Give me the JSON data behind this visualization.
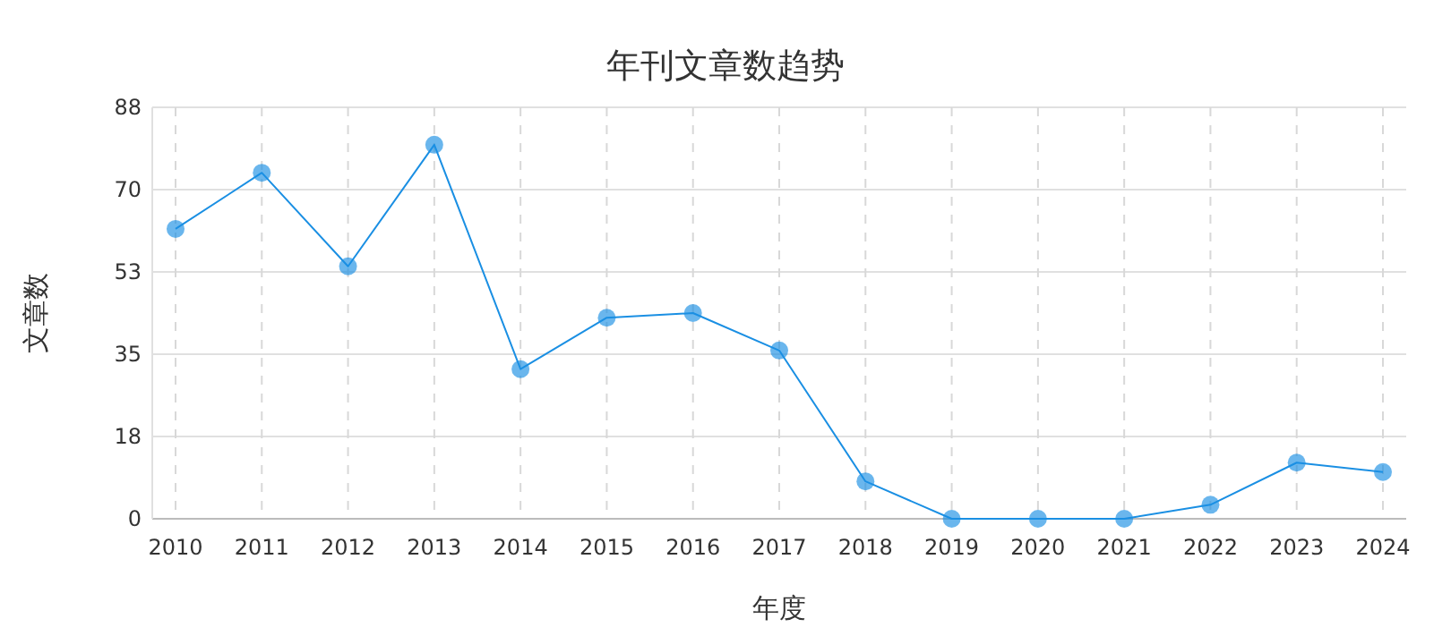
{
  "chart_data": {
    "type": "line",
    "title": "年刊文章数趋势",
    "xlabel": "年度",
    "ylabel": "文章数",
    "categories": [
      "2010",
      "2011",
      "2012",
      "2013",
      "2014",
      "2015",
      "2016",
      "2017",
      "2018",
      "2019",
      "2020",
      "2021",
      "2022",
      "2023",
      "2024"
    ],
    "series": [
      {
        "color": "#1a8fe3",
        "values": [
          62,
          74,
          54,
          80,
          32,
          43,
          44,
          36,
          8,
          0,
          0,
          0,
          3,
          12,
          10
        ]
      }
    ],
    "ylim": [
      0,
      88
    ],
    "yticks": [
      0,
      {
        "value": 17.6,
        "label": "18"
      },
      {
        "value": 35.2,
        "label": "35"
      },
      {
        "value": 52.8,
        "label": "53"
      },
      {
        "value": 70.4,
        "label": "70"
      },
      88
    ],
    "grid": true,
    "marker": "circle",
    "line_style": "solid"
  }
}
